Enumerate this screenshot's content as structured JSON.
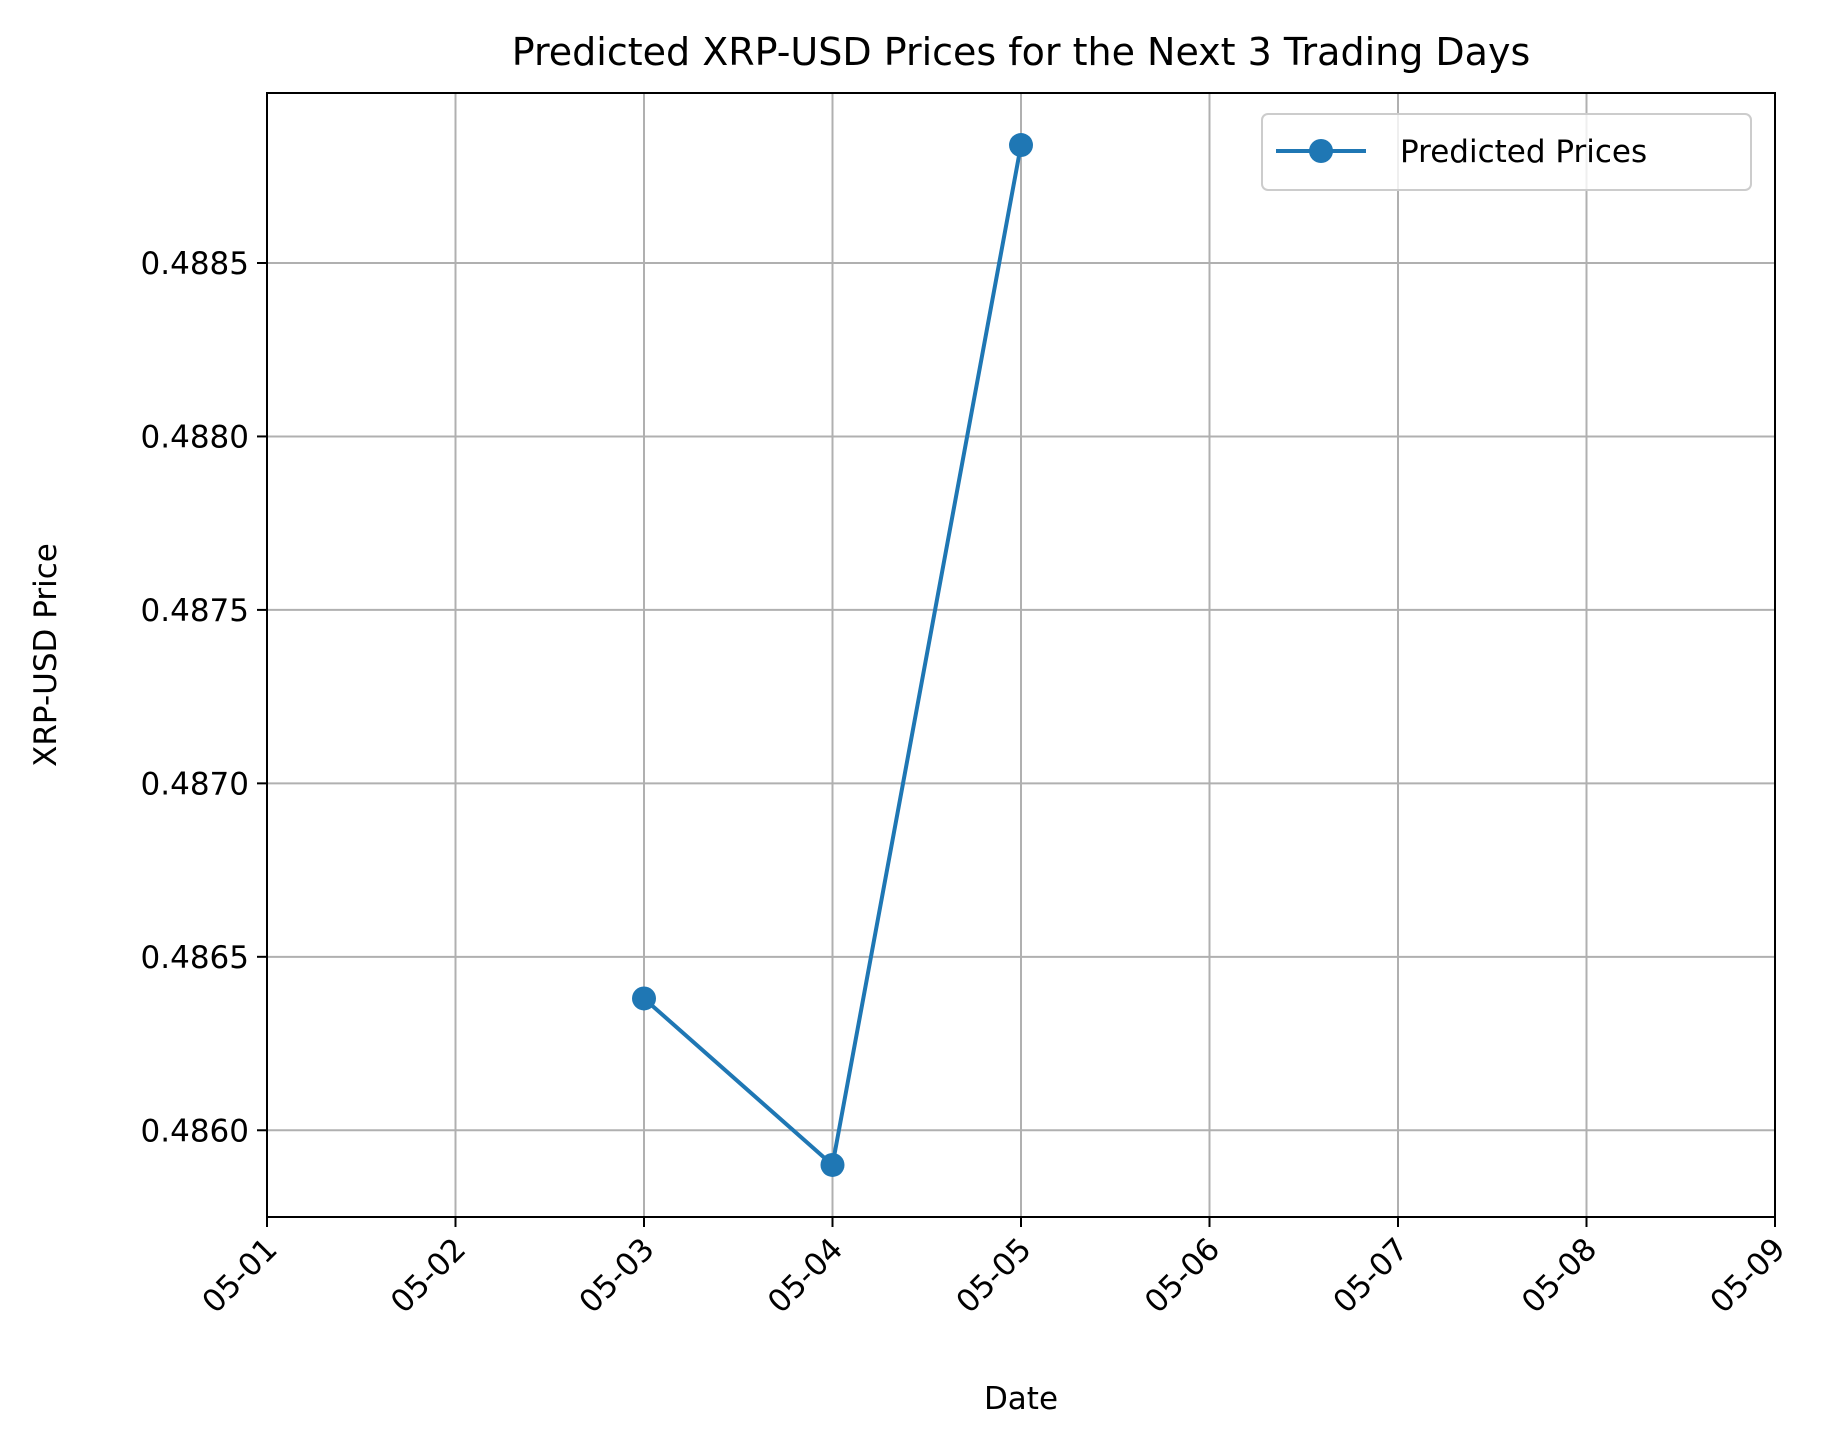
{
  "chart_data": {
    "type": "line",
    "title": "Predicted XRP-USD Prices for the Next 3 Trading Days",
    "xlabel": "Date",
    "ylabel": "XRP-USD Price",
    "x_ticks": [
      "05-01",
      "05-02",
      "05-03",
      "05-04",
      "05-05",
      "05-06",
      "05-07",
      "05-08",
      "05-09"
    ],
    "y_ticks": [
      0.486,
      0.4865,
      0.487,
      0.4875,
      0.488,
      0.4885
    ],
    "y_tick_labels": [
      "0.4860",
      "0.4865",
      "0.4870",
      "0.4875",
      "0.4880",
      "0.4885"
    ],
    "ylim": [
      0.48575,
      0.48899
    ],
    "grid": true,
    "legend_position": "top-right",
    "series": [
      {
        "name": "Predicted Prices",
        "color": "#1f77b4",
        "marker": "circle",
        "x": [
          "05-03",
          "05-04",
          "05-05"
        ],
        "values": [
          0.48638,
          0.4859,
          0.48884
        ]
      }
    ]
  }
}
